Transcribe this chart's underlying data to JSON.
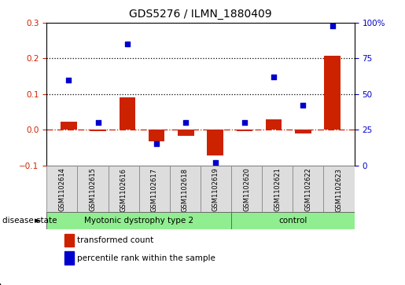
{
  "title": "GDS5276 / ILMN_1880409",
  "samples": [
    "GSM1102614",
    "GSM1102615",
    "GSM1102616",
    "GSM1102617",
    "GSM1102618",
    "GSM1102619",
    "GSM1102620",
    "GSM1102621",
    "GSM1102622",
    "GSM1102623"
  ],
  "red_bars": [
    0.022,
    -0.005,
    0.09,
    -0.033,
    -0.018,
    -0.072,
    -0.005,
    0.028,
    -0.01,
    0.207
  ],
  "blue_dots": [
    60,
    30,
    85,
    15,
    30,
    2,
    30,
    62,
    42,
    98
  ],
  "disease_groups": [
    {
      "label": "Myotonic dystrophy type 2",
      "start": 0,
      "end": 5,
      "color": "#90EE90"
    },
    {
      "label": "control",
      "start": 6,
      "end": 9,
      "color": "#90EE90"
    }
  ],
  "left_ylim": [
    -0.1,
    0.3
  ],
  "right_ylim": [
    0,
    100
  ],
  "left_yticks": [
    -0.1,
    0.0,
    0.1,
    0.2,
    0.3
  ],
  "right_yticks": [
    0,
    25,
    50,
    75,
    100
  ],
  "right_yticklabels": [
    "0",
    "25",
    "50",
    "75",
    "100%"
  ],
  "hlines": [
    0.1,
    0.2
  ],
  "bar_color": "#CC2200",
  "dot_color": "#0000CC",
  "zero_line_color": "#CC2200",
  "background_color": "#FFFFFF",
  "label_red": "transformed count",
  "label_blue": "percentile rank within the sample",
  "disease_state_label": "disease state"
}
